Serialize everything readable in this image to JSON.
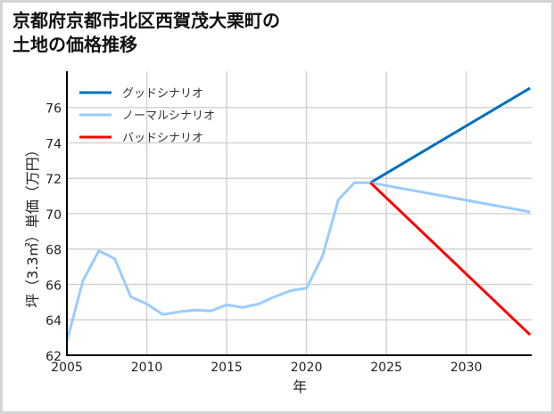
{
  "chart_data": {
    "type": "line",
    "title": "京都府京都市北区西賀茂大栗町の\n土地の価格推移",
    "xlabel": "年",
    "ylabel": "坪（3.3㎡）単価（万円）",
    "xlim": [
      2005,
      2034
    ],
    "ylim": [
      62,
      78
    ],
    "x_ticks": [
      2005,
      2010,
      2015,
      2020,
      2025,
      2030
    ],
    "y_ticks": [
      62,
      64,
      66,
      68,
      70,
      72,
      74,
      76
    ],
    "grid": true,
    "legend_position": "upper left",
    "series": [
      {
        "name": "グッドシナリオ",
        "color": "#0070c0",
        "x": [
          2024,
          2034
        ],
        "values": [
          71.75,
          77.1
        ]
      },
      {
        "name": "ノーマルシナリオ",
        "color": "#99ccff",
        "x": [
          2005,
          2006,
          2007,
          2008,
          2009,
          2010,
          2011,
          2012,
          2013,
          2014,
          2015,
          2016,
          2017,
          2018,
          2019,
          2020,
          2021,
          2022,
          2023,
          2024,
          2034
        ],
        "values": [
          62.8,
          66.2,
          67.9,
          67.45,
          65.3,
          64.9,
          64.3,
          64.45,
          64.55,
          64.5,
          64.85,
          64.7,
          64.9,
          65.3,
          65.65,
          65.8,
          67.6,
          70.8,
          71.75,
          71.75,
          70.1
        ]
      },
      {
        "name": "バッドシナリオ",
        "color": "#ff0000",
        "x": [
          2024,
          2034
        ],
        "values": [
          71.75,
          63.15
        ]
      }
    ]
  }
}
